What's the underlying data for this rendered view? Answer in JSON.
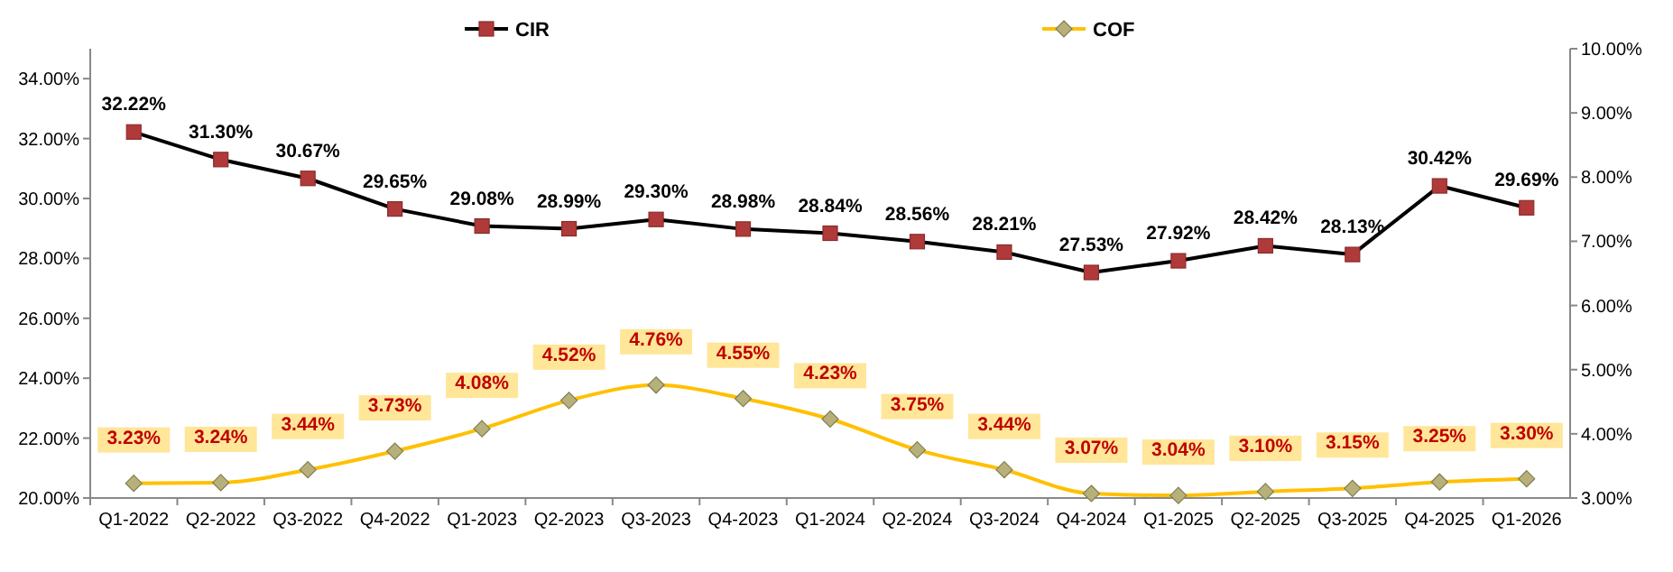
{
  "chart_data": {
    "type": "line",
    "categories": [
      "Q1-2022",
      "Q2-2022",
      "Q3-2022",
      "Q4-2022",
      "Q1-2023",
      "Q2-2023",
      "Q3-2023",
      "Q4-2023",
      "Q1-2024",
      "Q2-2024",
      "Q3-2024",
      "Q4-2024",
      "Q1-2025",
      "Q2-2025",
      "Q3-2025",
      "Q4-2025",
      "Q1-2026"
    ],
    "series": [
      {
        "name": "CIR",
        "color": "#000000",
        "marker": "square",
        "values": [
          32.22,
          31.3,
          30.67,
          29.65,
          29.08,
          28.99,
          29.3,
          28.98,
          28.84,
          28.56,
          28.21,
          27.53,
          27.92,
          28.42,
          28.13,
          30.42,
          29.69
        ],
        "value_labels": [
          "32.22%",
          "31.30%",
          "30.67%",
          "29.65%",
          "29.08%",
          "28.99%",
          "29.30%",
          "28.98%",
          "28.84%",
          "28.56%",
          "28.21%",
          "27.53%",
          "27.92%",
          "28.42%",
          "28.13%",
          "30.42%",
          "29.69%"
        ]
      },
      {
        "name": "COF",
        "color": "#ffc000",
        "marker": "diamond",
        "axis": "y2",
        "values": [
          3.23,
          3.24,
          3.44,
          3.73,
          4.08,
          4.52,
          4.76,
          4.55,
          4.23,
          3.75,
          3.44,
          3.07,
          3.04,
          3.1,
          3.15,
          3.25,
          3.3
        ],
        "value_labels": [
          "3.23%",
          "3.24%",
          "3.44%",
          "3.73%",
          "4.08%",
          "4.52%",
          "4.76%",
          "4.55%",
          "4.23%",
          "3.75%",
          "3.44%",
          "3.07%",
          "3.04%",
          "3.10%",
          "3.15%",
          "3.25%",
          "3.30%"
        ]
      }
    ],
    "ylim": [
      20,
      35
    ],
    "yticks": [
      {
        "value": 20,
        "label": "20.00%"
      },
      {
        "value": 22,
        "label": "22.00%"
      },
      {
        "value": 24,
        "label": "24.00%"
      },
      {
        "value": 26,
        "label": "26.00%"
      },
      {
        "value": 28,
        "label": "28.00%"
      },
      {
        "value": 30,
        "label": "30.00%"
      },
      {
        "value": 32,
        "label": "32.00%"
      },
      {
        "value": 34,
        "label": "34.00%"
      }
    ],
    "y2lim": [
      3,
      10
    ],
    "y2ticks": [
      {
        "value": 3,
        "label": "3.00%"
      },
      {
        "value": 4,
        "label": "4.00%"
      },
      {
        "value": 5,
        "label": "5.00%"
      },
      {
        "value": 6,
        "label": "6.00%"
      },
      {
        "value": 7,
        "label": "7.00%"
      },
      {
        "value": 8,
        "label": "8.00%"
      },
      {
        "value": 9,
        "label": "9.00%"
      },
      {
        "value": 10,
        "label": "10.00%"
      }
    ],
    "legend": "top",
    "grid": false
  }
}
